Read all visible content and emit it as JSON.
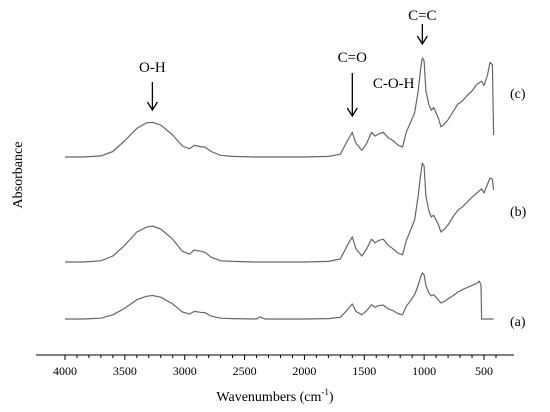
{
  "chart_data": {
    "type": "line",
    "xlabel": "Wavenumbers (cm",
    "xlabel_sup": "-1",
    "xlabel_close": ")",
    "ylabel": "Absorbance",
    "xlim": [
      4000,
      400
    ],
    "x_reversed": true,
    "xticks": [
      4000,
      3500,
      3000,
      2500,
      2000,
      1500,
      1000,
      500
    ],
    "grid": false,
    "annotations": [
      {
        "text": "O-H",
        "x": 3270,
        "arrow": true
      },
      {
        "text": "C=O",
        "x": 1600,
        "arrow": true
      },
      {
        "text": "C-O-H",
        "x": 1380,
        "arrow": false
      },
      {
        "text": "C=C",
        "x": 1015,
        "arrow": true
      }
    ],
    "series": [
      {
        "name": "(c)",
        "color": "#666666",
        "points": [
          [
            4000,
            0.0
          ],
          [
            3850,
            0.0
          ],
          [
            3700,
            0.02
          ],
          [
            3600,
            0.1
          ],
          [
            3500,
            0.3
          ],
          [
            3400,
            0.52
          ],
          [
            3320,
            0.62
          ],
          [
            3270,
            0.63
          ],
          [
            3200,
            0.58
          ],
          [
            3100,
            0.4
          ],
          [
            3020,
            0.2
          ],
          [
            2960,
            0.15
          ],
          [
            2920,
            0.21
          ],
          [
            2870,
            0.19
          ],
          [
            2830,
            0.18
          ],
          [
            2780,
            0.1
          ],
          [
            2700,
            0.03
          ],
          [
            2600,
            0.01
          ],
          [
            2400,
            0.0
          ],
          [
            2000,
            0.0
          ],
          [
            1800,
            0.01
          ],
          [
            1700,
            0.05
          ],
          [
            1640,
            0.3
          ],
          [
            1600,
            0.45
          ],
          [
            1570,
            0.25
          ],
          [
            1520,
            0.12
          ],
          [
            1480,
            0.25
          ],
          [
            1440,
            0.45
          ],
          [
            1410,
            0.38
          ],
          [
            1380,
            0.42
          ],
          [
            1340,
            0.45
          ],
          [
            1300,
            0.35
          ],
          [
            1260,
            0.3
          ],
          [
            1220,
            0.22
          ],
          [
            1180,
            0.18
          ],
          [
            1150,
            0.45
          ],
          [
            1110,
            0.65
          ],
          [
            1080,
            0.8
          ],
          [
            1050,
            1.2
          ],
          [
            1030,
            1.6
          ],
          [
            1015,
            1.8
          ],
          [
            1000,
            1.75
          ],
          [
            985,
            1.2
          ],
          [
            960,
            0.95
          ],
          [
            940,
            0.85
          ],
          [
            920,
            0.9
          ],
          [
            880,
            0.7
          ],
          [
            860,
            0.55
          ],
          [
            830,
            0.6
          ],
          [
            800,
            0.68
          ],
          [
            760,
            0.82
          ],
          [
            720,
            0.96
          ],
          [
            680,
            1.02
          ],
          [
            640,
            1.12
          ],
          [
            600,
            1.2
          ],
          [
            560,
            1.32
          ],
          [
            520,
            1.38
          ],
          [
            500,
            1.3
          ],
          [
            470,
            1.5
          ],
          [
            450,
            1.72
          ],
          [
            430,
            1.68
          ],
          [
            420,
            0.4
          ]
        ]
      },
      {
        "name": "(b)",
        "color": "#666666",
        "points": [
          [
            4000,
            0.0
          ],
          [
            3850,
            0.0
          ],
          [
            3700,
            0.02
          ],
          [
            3600,
            0.1
          ],
          [
            3500,
            0.28
          ],
          [
            3400,
            0.5
          ],
          [
            3320,
            0.58
          ],
          [
            3270,
            0.6
          ],
          [
            3200,
            0.55
          ],
          [
            3100,
            0.38
          ],
          [
            3020,
            0.18
          ],
          [
            2960,
            0.13
          ],
          [
            2920,
            0.2
          ],
          [
            2870,
            0.18
          ],
          [
            2830,
            0.16
          ],
          [
            2780,
            0.08
          ],
          [
            2700,
            0.02
          ],
          [
            2600,
            0.01
          ],
          [
            2400,
            0.0
          ],
          [
            2000,
            0.0
          ],
          [
            1800,
            0.01
          ],
          [
            1700,
            0.05
          ],
          [
            1640,
            0.28
          ],
          [
            1600,
            0.42
          ],
          [
            1570,
            0.22
          ],
          [
            1520,
            0.1
          ],
          [
            1480,
            0.22
          ],
          [
            1440,
            0.38
          ],
          [
            1410,
            0.32
          ],
          [
            1380,
            0.36
          ],
          [
            1340,
            0.38
          ],
          [
            1300,
            0.28
          ],
          [
            1260,
            0.22
          ],
          [
            1220,
            0.15
          ],
          [
            1180,
            0.12
          ],
          [
            1150,
            0.35
          ],
          [
            1110,
            0.55
          ],
          [
            1080,
            0.7
          ],
          [
            1050,
            1.1
          ],
          [
            1030,
            1.45
          ],
          [
            1015,
            1.65
          ],
          [
            1000,
            1.6
          ],
          [
            985,
            1.1
          ],
          [
            960,
            0.85
          ],
          [
            940,
            0.75
          ],
          [
            920,
            0.78
          ],
          [
            880,
            0.62
          ],
          [
            860,
            0.5
          ],
          [
            830,
            0.55
          ],
          [
            800,
            0.62
          ],
          [
            760,
            0.75
          ],
          [
            720,
            0.86
          ],
          [
            680,
            0.92
          ],
          [
            640,
            1.0
          ],
          [
            600,
            1.08
          ],
          [
            560,
            1.15
          ],
          [
            520,
            1.22
          ],
          [
            500,
            1.15
          ],
          [
            470,
            1.3
          ],
          [
            450,
            1.4
          ],
          [
            430,
            1.38
          ],
          [
            420,
            1.2
          ]
        ]
      },
      {
        "name": "(a)",
        "color": "#666666",
        "points": [
          [
            4000,
            0.0
          ],
          [
            3850,
            0.0
          ],
          [
            3700,
            0.02
          ],
          [
            3600,
            0.1
          ],
          [
            3500,
            0.26
          ],
          [
            3400,
            0.46
          ],
          [
            3320,
            0.54
          ],
          [
            3270,
            0.56
          ],
          [
            3200,
            0.52
          ],
          [
            3100,
            0.36
          ],
          [
            3020,
            0.17
          ],
          [
            2960,
            0.12
          ],
          [
            2920,
            0.18
          ],
          [
            2870,
            0.16
          ],
          [
            2830,
            0.15
          ],
          [
            2780,
            0.07
          ],
          [
            2700,
            0.02
          ],
          [
            2600,
            0.01
          ],
          [
            2400,
            0.0
          ],
          [
            2370,
            0.05
          ],
          [
            2330,
            0.0
          ],
          [
            2000,
            0.0
          ],
          [
            1800,
            0.01
          ],
          [
            1700,
            0.04
          ],
          [
            1640,
            0.22
          ],
          [
            1600,
            0.36
          ],
          [
            1570,
            0.18
          ],
          [
            1520,
            0.1
          ],
          [
            1480,
            0.2
          ],
          [
            1440,
            0.34
          ],
          [
            1410,
            0.28
          ],
          [
            1380,
            0.32
          ],
          [
            1340,
            0.33
          ],
          [
            1300,
            0.24
          ],
          [
            1260,
            0.2
          ],
          [
            1220,
            0.13
          ],
          [
            1180,
            0.1
          ],
          [
            1150,
            0.3
          ],
          [
            1110,
            0.45
          ],
          [
            1080,
            0.58
          ],
          [
            1050,
            0.8
          ],
          [
            1030,
            1.0
          ],
          [
            1015,
            1.1
          ],
          [
            1000,
            1.05
          ],
          [
            985,
            0.8
          ],
          [
            960,
            0.62
          ],
          [
            940,
            0.55
          ],
          [
            920,
            0.58
          ],
          [
            880,
            0.45
          ],
          [
            860,
            0.38
          ],
          [
            830,
            0.42
          ],
          [
            800,
            0.48
          ],
          [
            760,
            0.55
          ],
          [
            720,
            0.64
          ],
          [
            680,
            0.7
          ],
          [
            640,
            0.75
          ],
          [
            600,
            0.8
          ],
          [
            560,
            0.85
          ],
          [
            540,
            0.9
          ],
          [
            525,
            0.82
          ],
          [
            520,
            0.0
          ],
          [
            420,
            0.0
          ]
        ]
      }
    ]
  }
}
